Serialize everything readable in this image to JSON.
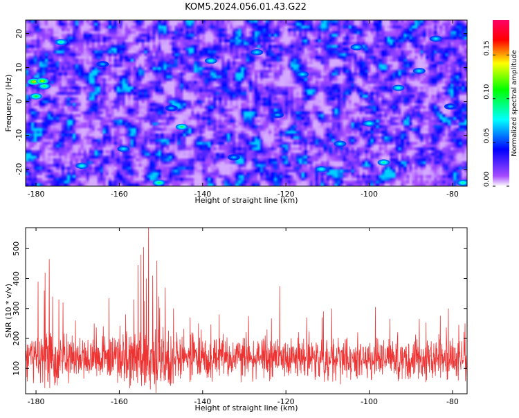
{
  "title": "KOM5.2024.056.01.43.G22",
  "chart_data": [
    {
      "type": "heatmap",
      "title": "KOM5.2024.056.01.43.G22",
      "xlabel": "Height of straight line (km)",
      "ylabel": "Frequency (Hz)",
      "xlim": [
        -182.5,
        -76.5
      ],
      "ylim": [
        -25,
        24
      ],
      "x_ticks": [
        "-180",
        "-160",
        "-140",
        "-120",
        "-100",
        "-80"
      ],
      "x_tick_values": [
        -180,
        -160,
        -140,
        -120,
        -100,
        -80
      ],
      "y_ticks": [
        "20",
        "10",
        "0",
        "-10",
        "-20"
      ],
      "y_tick_values": [
        20,
        10,
        0,
        -10,
        -20
      ],
      "colorbar": {
        "label": "Normalized spectral amplitude",
        "range": [
          0,
          0.19
        ],
        "ticks": [
          "0.00",
          "0.05",
          "0.10",
          "0.15"
        ],
        "tick_values": [
          0,
          0.05,
          0.1,
          0.15
        ],
        "colormap": [
          "#ffffff",
          "#9b30ff",
          "#0000ff",
          "#00ffff",
          "#00ff00",
          "#ffff00",
          "#ff0000",
          "#ff0066"
        ]
      },
      "background_level": 0.03,
      "hotspots": [
        {
          "x": -180.5,
          "y": 5.8,
          "value": 0.17
        },
        {
          "x": -178.5,
          "y": 6.0,
          "value": 0.15
        },
        {
          "x": -180.0,
          "y": 1.5,
          "value": 0.12
        },
        {
          "x": -178.0,
          "y": 4.5,
          "value": 0.11
        },
        {
          "x": -174.0,
          "y": 17.5,
          "value": 0.1
        },
        {
          "x": -169.0,
          "y": -19.0,
          "value": 0.09
        },
        {
          "x": -150.5,
          "y": -24.0,
          "value": 0.11
        },
        {
          "x": -145.0,
          "y": -7.5,
          "value": 0.11
        },
        {
          "x": -138.0,
          "y": 12.0,
          "value": 0.09
        },
        {
          "x": -127.0,
          "y": 14.5,
          "value": 0.08
        },
        {
          "x": -111.5,
          "y": -20.0,
          "value": 0.09
        },
        {
          "x": -100.0,
          "y": -6.5,
          "value": 0.09
        },
        {
          "x": -96.5,
          "y": -18.0,
          "value": 0.1
        },
        {
          "x": -93.0,
          "y": 4.0,
          "value": 0.09
        },
        {
          "x": -84.0,
          "y": 18.5,
          "value": 0.08
        },
        {
          "x": -77.5,
          "y": -24.0,
          "value": 0.1
        },
        {
          "x": -107.0,
          "y": -12.5,
          "value": 0.08
        },
        {
          "x": -103.0,
          "y": 16.0,
          "value": 0.08
        },
        {
          "x": -159.0,
          "y": -14.0,
          "value": 0.08
        },
        {
          "x": -147.5,
          "y": -2.0,
          "value": 0.07
        },
        {
          "x": -116.0,
          "y": 8.0,
          "value": 0.08
        },
        {
          "x": -132.5,
          "y": -16.5,
          "value": 0.07
        },
        {
          "x": -88.0,
          "y": 9.0,
          "value": 0.08
        },
        {
          "x": -80.5,
          "y": -1.5,
          "value": 0.07
        },
        {
          "x": -164.0,
          "y": 11.0,
          "value": 0.07
        },
        {
          "x": -122.0,
          "y": -4.0,
          "value": 0.07
        }
      ]
    },
    {
      "type": "line",
      "xlabel": "Height of straight line (km)",
      "ylabel": "SNR (10 * v/v)",
      "xlim": [
        -182.5,
        -76.5
      ],
      "ylim": [
        15,
        570
      ],
      "x_ticks": [
        "-180",
        "-160",
        "-140",
        "-120",
        "-100",
        "-80"
      ],
      "x_tick_values": [
        -180,
        -160,
        -140,
        -120,
        -100,
        -80
      ],
      "y_ticks": [
        "100",
        "200",
        "300",
        "400",
        "500"
      ],
      "y_tick_values": [
        100,
        200,
        300,
        400,
        500
      ],
      "color": "#ee3333",
      "baseline_mean": 130,
      "noise_spread": 60,
      "peaks": [
        {
          "x": -179.5,
          "y": 390
        },
        {
          "x": -178.0,
          "y": 360
        },
        {
          "x": -177.8,
          "y": 420
        },
        {
          "x": -176.8,
          "y": 465
        },
        {
          "x": -176.0,
          "y": 340
        },
        {
          "x": -174.5,
          "y": 330
        },
        {
          "x": -173.5,
          "y": 320
        },
        {
          "x": -170.5,
          "y": 260
        },
        {
          "x": -166.0,
          "y": 250
        },
        {
          "x": -162.5,
          "y": 335
        },
        {
          "x": -158.5,
          "y": 280
        },
        {
          "x": -156.5,
          "y": 330
        },
        {
          "x": -155.5,
          "y": 445
        },
        {
          "x": -154.8,
          "y": 480
        },
        {
          "x": -154.2,
          "y": 505
        },
        {
          "x": -153.5,
          "y": 400
        },
        {
          "x": -153.0,
          "y": 570
        },
        {
          "x": -152.0,
          "y": 410
        },
        {
          "x": -151.0,
          "y": 460
        },
        {
          "x": -150.5,
          "y": 340
        },
        {
          "x": -149.0,
          "y": 370
        },
        {
          "x": -147.0,
          "y": 300
        },
        {
          "x": -143.0,
          "y": 270
        },
        {
          "x": -141.0,
          "y": 250
        },
        {
          "x": -136.0,
          "y": 280
        },
        {
          "x": -129.0,
          "y": 275
        },
        {
          "x": -121.5,
          "y": 375
        },
        {
          "x": -115.0,
          "y": 270
        },
        {
          "x": -111.0,
          "y": 290
        },
        {
          "x": -109.0,
          "y": 300
        },
        {
          "x": -98.5,
          "y": 305
        },
        {
          "x": -95.0,
          "y": 265
        },
        {
          "x": -88.0,
          "y": 265
        },
        {
          "x": -81.0,
          "y": 300
        },
        {
          "x": -78.5,
          "y": 245
        },
        {
          "x": -77.0,
          "y": 250
        }
      ]
    }
  ]
}
